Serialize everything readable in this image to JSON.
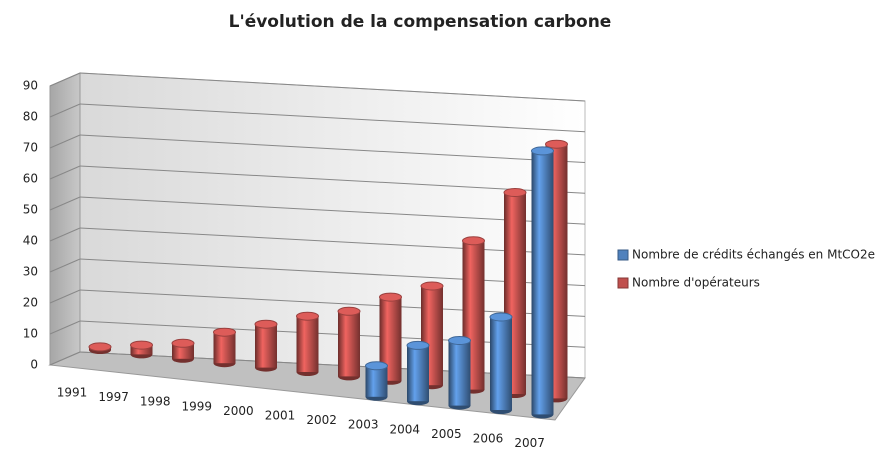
{
  "chart_data": {
    "type": "bar3d",
    "title": "L'évolution de la compensation  carbone",
    "categories": [
      "1991",
      "1997",
      "1998",
      "1999",
      "2000",
      "2001",
      "2002",
      "2003",
      "2004",
      "2005",
      "2006",
      "2007"
    ],
    "series": [
      {
        "name": "Nombre de crédits échangés en MtCO2e",
        "color": "#4f81bd",
        "values": [
          null,
          null,
          null,
          null,
          null,
          null,
          null,
          10,
          18,
          21,
          30,
          85
        ]
      },
      {
        "name": "Nombre d'opérateurs",
        "color": "#c0504d",
        "values": [
          1,
          3,
          5,
          10,
          14,
          18,
          21,
          27,
          32,
          48,
          65,
          82
        ]
      }
    ],
    "ylim": [
      0,
      90
    ],
    "yticks": [
      0,
      10,
      20,
      30,
      40,
      50,
      60,
      70,
      80,
      90
    ],
    "grid": true,
    "legend": "right"
  }
}
